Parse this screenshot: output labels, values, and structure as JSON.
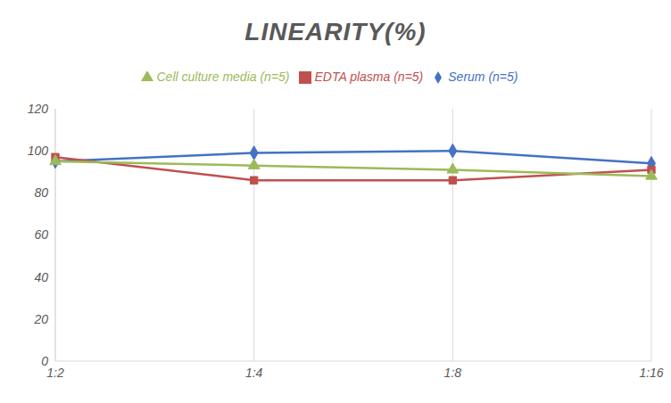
{
  "chart_data": {
    "type": "line",
    "title": "LINEARITY(%)",
    "categories": [
      "1:2",
      "1:4",
      "1:8",
      "1:16"
    ],
    "series": [
      {
        "name": "Serum (n=5)",
        "color": "#4472c4",
        "marker": "diamond",
        "values": [
          95,
          99,
          100,
          94
        ]
      },
      {
        "name": "EDTA plasma (n=5)",
        "color": "#c0504d",
        "marker": "square",
        "values": [
          97,
          86,
          86,
          91
        ]
      },
      {
        "name": "Cell culture media (n=5)",
        "color": "#9bbb59",
        "marker": "triangle",
        "values": [
          95,
          93,
          91,
          88
        ]
      }
    ],
    "ylim": [
      0,
      120
    ],
    "yticks": [
      0,
      20,
      40,
      60,
      80,
      100,
      120
    ],
    "grid": true,
    "legend": "top"
  }
}
